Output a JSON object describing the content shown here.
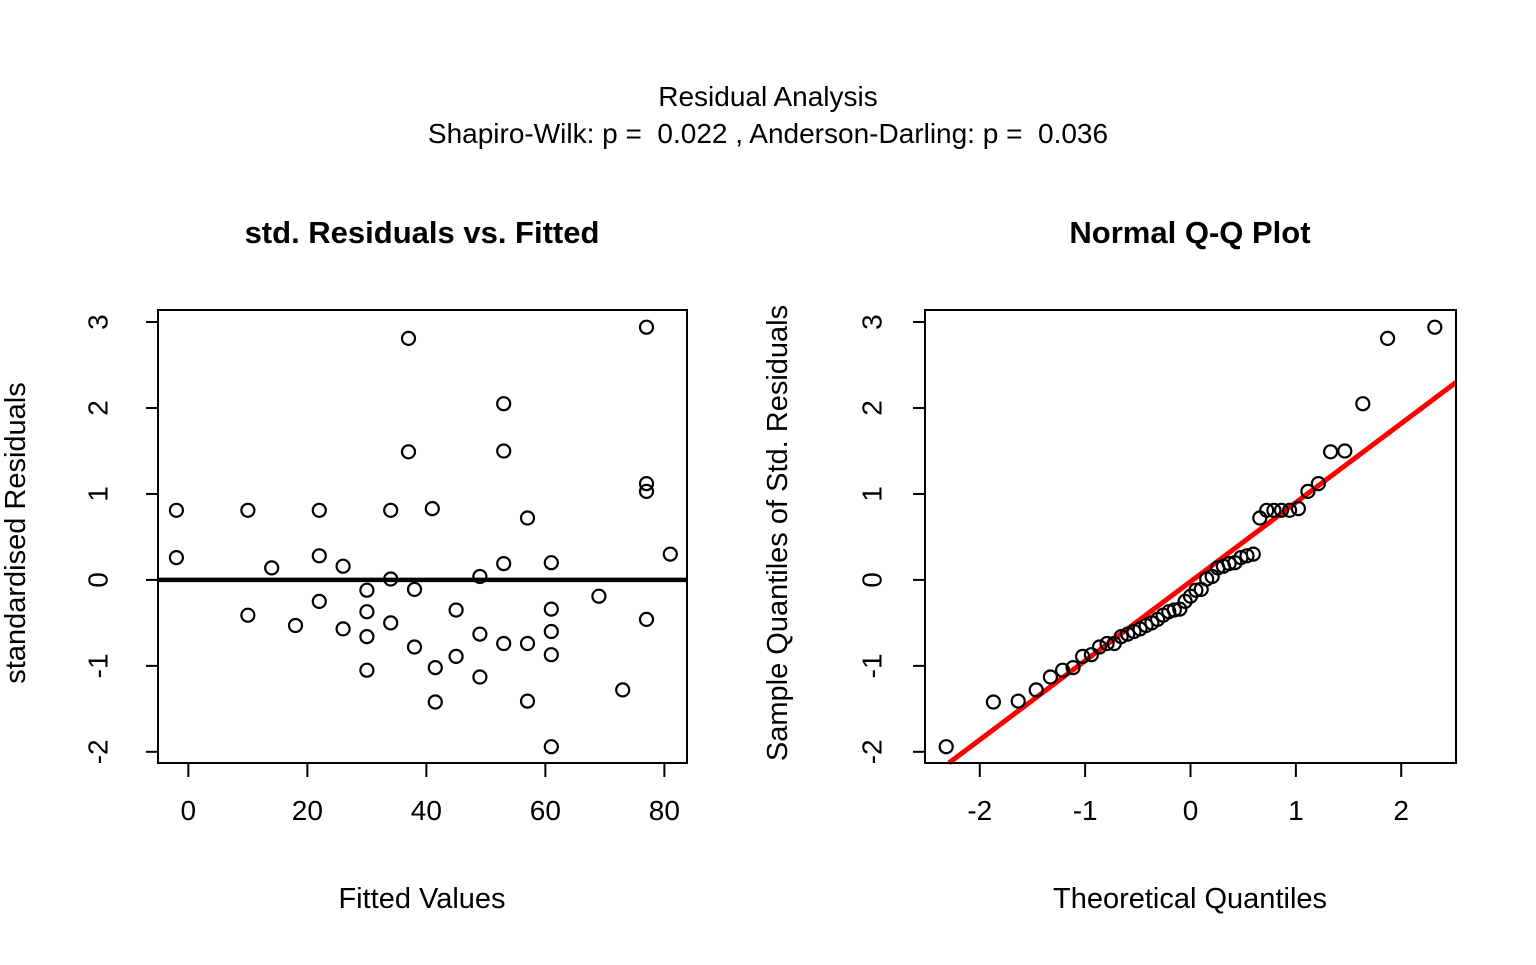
{
  "figure": {
    "background": "#ffffff",
    "title_line1": "Residual Analysis",
    "title_line2": "Shapiro-Wilk: p =  0.022 , Anderson-Darling: p =  0.036"
  },
  "chart_data": [
    {
      "type": "scatter",
      "title": "std. Residuals vs. Fitted",
      "xlabel": "Fitted Values",
      "ylabel": "standardised Residuals",
      "x_ticks": [
        0,
        20,
        40,
        60,
        80
      ],
      "y_ticks": [
        3,
        2,
        1,
        0,
        -1,
        -2
      ],
      "xlim": [
        -5.1,
        83.8
      ],
      "ylim": [
        -2.13,
        3.14
      ],
      "grid": false,
      "hline": 0,
      "hline_color": "#000000",
      "point_color": "#000000",
      "points": [
        [
          -2,
          0.81
        ],
        [
          10,
          0.81
        ],
        [
          22,
          0.81
        ],
        [
          34,
          0.81
        ],
        [
          41,
          0.83
        ],
        [
          57,
          0.72
        ],
        [
          37,
          2.81
        ],
        [
          77,
          2.94
        ],
        [
          53,
          2.05
        ],
        [
          37,
          1.49
        ],
        [
          53,
          1.5
        ],
        [
          77,
          1.12
        ],
        [
          77,
          1.03
        ],
        [
          -2,
          0.26
        ],
        [
          14,
          0.14
        ],
        [
          22,
          0.28
        ],
        [
          26,
          0.16
        ],
        [
          34,
          0.01
        ],
        [
          30,
          -0.12
        ],
        [
          38,
          -0.11
        ],
        [
          22,
          -0.25
        ],
        [
          10,
          -0.41
        ],
        [
          18,
          -0.53
        ],
        [
          26,
          -0.57
        ],
        [
          30,
          -0.37
        ],
        [
          30,
          -0.66
        ],
        [
          34,
          -0.5
        ],
        [
          38,
          -0.78
        ],
        [
          30,
          -1.05
        ],
        [
          81,
          0.3
        ],
        [
          53,
          0.19
        ],
        [
          61,
          0.2
        ],
        [
          49,
          0.04
        ],
        [
          69,
          -0.19
        ],
        [
          45,
          -0.35
        ],
        [
          61,
          -0.34
        ],
        [
          77,
          -0.46
        ],
        [
          49,
          -0.63
        ],
        [
          53,
          -0.74
        ],
        [
          57,
          -0.74
        ],
        [
          61,
          -0.6
        ],
        [
          61,
          -0.87
        ],
        [
          45,
          -0.89
        ],
        [
          41.5,
          -1.02
        ],
        [
          49,
          -1.13
        ],
        [
          41.5,
          -1.42
        ],
        [
          57,
          -1.41
        ],
        [
          73,
          -1.28
        ],
        [
          61,
          -1.94
        ]
      ]
    },
    {
      "type": "scatter",
      "title": "Normal Q-Q Plot",
      "xlabel": "Theoretical Quantiles",
      "ylabel": "Sample Quantiles of Std. Residuals",
      "x_ticks": [
        -2,
        -1,
        0,
        1,
        2
      ],
      "y_ticks": [
        3,
        2,
        1,
        0,
        -1,
        -2
      ],
      "xlim": [
        -2.52,
        2.52
      ],
      "ylim": [
        -2.13,
        3.14
      ],
      "grid": false,
      "ref_line": {
        "slope": 0.92,
        "intercept": -0.02,
        "color": "#ff0000"
      },
      "point_color": "#000000",
      "points": [
        [
          -2.319,
          -1.94
        ],
        [
          -1.871,
          -1.42
        ],
        [
          -1.635,
          -1.41
        ],
        [
          -1.465,
          -1.28
        ],
        [
          -1.33,
          -1.13
        ],
        [
          -1.214,
          -1.05
        ],
        [
          -1.114,
          -1.02
        ],
        [
          -1.024,
          -0.89
        ],
        [
          -0.941,
          -0.87
        ],
        [
          -0.864,
          -0.78
        ],
        [
          -0.792,
          -0.74
        ],
        [
          -0.723,
          -0.74
        ],
        [
          -0.658,
          -0.66
        ],
        [
          -0.596,
          -0.63
        ],
        [
          -0.536,
          -0.6
        ],
        [
          -0.478,
          -0.57
        ],
        [
          -0.421,
          -0.53
        ],
        [
          -0.366,
          -0.5
        ],
        [
          -0.312,
          -0.46
        ],
        [
          -0.259,
          -0.41
        ],
        [
          -0.206,
          -0.37
        ],
        [
          -0.154,
          -0.35
        ],
        [
          -0.102,
          -0.34
        ],
        [
          -0.051,
          -0.25
        ],
        [
          0.0,
          -0.19
        ],
        [
          0.051,
          -0.12
        ],
        [
          0.102,
          -0.11
        ],
        [
          0.154,
          0.01
        ],
        [
          0.206,
          0.04
        ],
        [
          0.259,
          0.14
        ],
        [
          0.312,
          0.16
        ],
        [
          0.366,
          0.19
        ],
        [
          0.421,
          0.2
        ],
        [
          0.478,
          0.26
        ],
        [
          0.536,
          0.28
        ],
        [
          0.596,
          0.3
        ],
        [
          0.658,
          0.72
        ],
        [
          0.723,
          0.81
        ],
        [
          0.792,
          0.81
        ],
        [
          0.864,
          0.81
        ],
        [
          0.941,
          0.81
        ],
        [
          1.024,
          0.83
        ],
        [
          1.114,
          1.03
        ],
        [
          1.214,
          1.12
        ],
        [
          1.33,
          1.49
        ],
        [
          1.465,
          1.5
        ],
        [
          1.635,
          2.05
        ],
        [
          1.871,
          2.81
        ],
        [
          2.319,
          2.94
        ]
      ]
    }
  ]
}
